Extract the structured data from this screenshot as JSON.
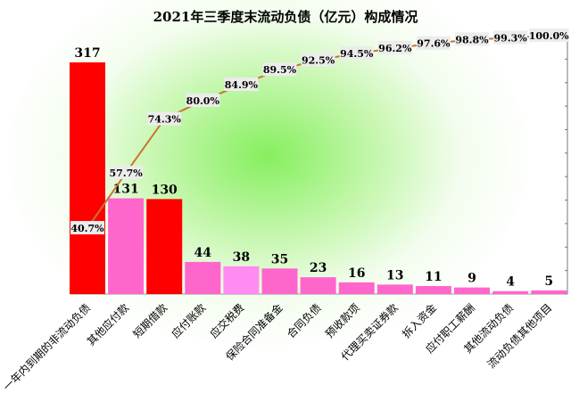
{
  "chart_data": {
    "type": "bar",
    "title": "2021年三季度末流动负债（亿元）构成情况",
    "categories": [
      "一年内到期的非流动负债",
      "其他应付款",
      "短期借款",
      "应付账款",
      "应交税费",
      "保险合同准备金",
      "合同负债",
      "预收款项",
      "代理买卖证券款",
      "拆入资金",
      "应付职工薪酬",
      "其他流动负债",
      "流动负债其他项目"
    ],
    "values": [
      317,
      131,
      130,
      44,
      38,
      35,
      23,
      16,
      13,
      11,
      9,
      4,
      5
    ],
    "bar_colors": [
      "#ff0000",
      "#ff66cc",
      "#ff0000",
      "#ff66cc",
      "#ff8cf0",
      "#ff66cc",
      "#ff66cc",
      "#ff66cc",
      "#ff66cc",
      "#ff66cc",
      "#ff66cc",
      "#ff66cc",
      "#ff66cc"
    ],
    "cumulative_labels": [
      "40.7%",
      "57.7%",
      "74.3%",
      "80.0%",
      "84.9%",
      "89.5%",
      "92.5%",
      "94.5%",
      "96.2%",
      "97.6%",
      "98.8%",
      "99.3%",
      "100.0%"
    ],
    "cumulative_values": [
      40.7,
      57.7,
      74.3,
      80.0,
      84.9,
      89.5,
      92.5,
      94.5,
      96.2,
      97.6,
      98.8,
      99.3,
      100.0
    ],
    "line_color": "#c87530",
    "ylim": [
      0,
      317
    ],
    "grid": false,
    "legend": "none"
  }
}
